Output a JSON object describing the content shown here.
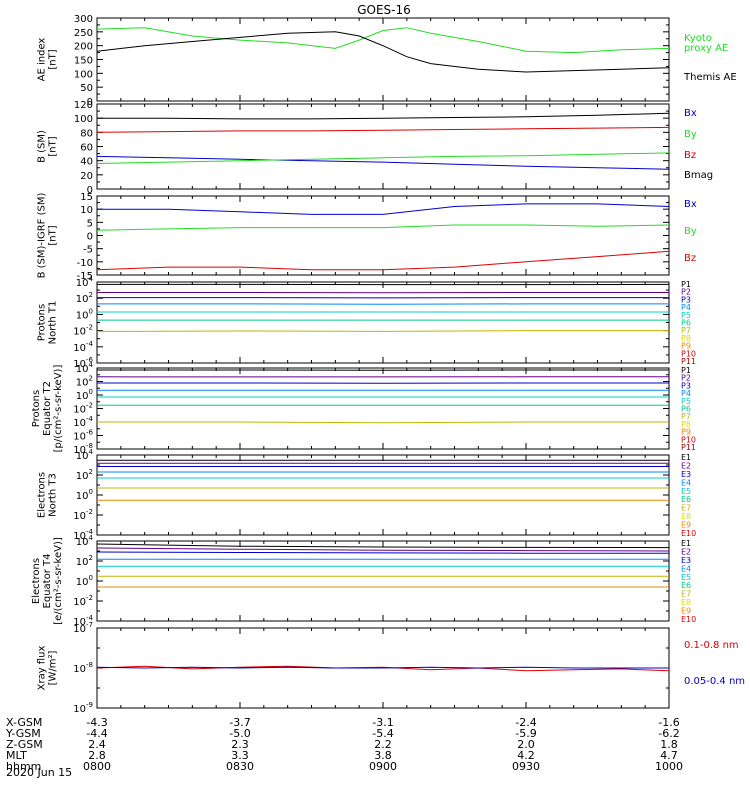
{
  "title": "GOES-16",
  "date_label": "2020 Jun 15",
  "colors": {
    "black": "#000000",
    "red": "#dd0000",
    "green": "#22dd22",
    "blue": "#0000cc",
    "P1": "#000000",
    "P2": "#660088",
    "P3": "#0000cc",
    "P4": "#0088ff",
    "P5": "#00cccc",
    "P6": "#00cc88",
    "P7": "#bbbb00",
    "P8": "#dddd00",
    "P9": "#ee8800",
    "P10": "#dd0000",
    "P11": "#aa0000"
  },
  "x_axis": {
    "ticks": [
      "0800",
      "0830",
      "0900",
      "0930",
      "1000"
    ],
    "rows": [
      {
        "label": "X-GSM",
        "values": [
          "-4.3",
          "-3.7",
          "-3.1",
          "-2.4",
          "-1.6"
        ]
      },
      {
        "label": "Y-GSM",
        "values": [
          "-4.4",
          "-5.0",
          "-5.4",
          "-5.9",
          "-6.2"
        ]
      },
      {
        "label": "Z-GSM",
        "values": [
          "2.4",
          "2.3",
          "2.2",
          "2.0",
          "1.8"
        ]
      },
      {
        "label": "MLT",
        "values": [
          "2.8",
          "3.3",
          "3.8",
          "4.2",
          "4.7"
        ]
      },
      {
        "label": "hhmm",
        "values": [
          "0800",
          "0830",
          "0900",
          "0930",
          "1000"
        ]
      }
    ]
  },
  "chart_data": [
    {
      "type": "line",
      "ylabel": [
        "AE index",
        "[nT]"
      ],
      "ylim": [
        0,
        300
      ],
      "y_ticks": [
        0,
        50,
        100,
        150,
        200,
        250,
        300
      ],
      "x": [
        "0800",
        "0810",
        "0820",
        "0830",
        "0840",
        "0850",
        "0855",
        "0900",
        "0905",
        "0910",
        "0920",
        "0930",
        "0940",
        "0950",
        "1000"
      ],
      "series": [
        {
          "name": "Kyoto proxy AE",
          "color": "green",
          "values": [
            260,
            265,
            235,
            220,
            210,
            190,
            220,
            255,
            265,
            245,
            215,
            180,
            175,
            185,
            190
          ]
        },
        {
          "name": "Themis AE",
          "color": "black",
          "values": [
            180,
            200,
            215,
            230,
            245,
            250,
            235,
            200,
            160,
            135,
            115,
            105,
            110,
            115,
            120
          ]
        }
      ],
      "legend": [
        {
          "text": "Kyoto",
          "color": "green"
        },
        {
          "text": "proxy AE",
          "color": "green"
        },
        {
          "text": "Themis AE",
          "color": "black"
        }
      ]
    },
    {
      "type": "line",
      "ylabel": [
        "B (SM)",
        "[nT]"
      ],
      "ylim": [
        0,
        120
      ],
      "y_ticks": [
        0,
        20,
        40,
        60,
        80,
        100,
        120
      ],
      "x": [
        "0800",
        "0815",
        "0830",
        "0845",
        "0900",
        "0915",
        "0930",
        "0945",
        "1000"
      ],
      "series": [
        {
          "name": "Bx",
          "color": "blue",
          "values": [
            46,
            44,
            42,
            40,
            38,
            35,
            32,
            30,
            28
          ]
        },
        {
          "name": "By",
          "color": "green",
          "values": [
            36,
            38,
            40,
            42,
            44,
            46,
            47,
            49,
            51
          ]
        },
        {
          "name": "Bz",
          "color": "red",
          "values": [
            80,
            81,
            82,
            82,
            83,
            84,
            85,
            86,
            87
          ]
        },
        {
          "name": "Bmag",
          "color": "black",
          "values": [
            100,
            100,
            99,
            99,
            100,
            101,
            102,
            104,
            107
          ]
        }
      ],
      "legend": [
        {
          "text": "Bx",
          "color": "blue"
        },
        {
          "text": "By",
          "color": "green"
        },
        {
          "text": "Bz",
          "color": "red"
        },
        {
          "text": "Bmag",
          "color": "black"
        }
      ]
    },
    {
      "type": "line",
      "ylabel": [
        "B (SM)-IGRF (SM)",
        "[nT]"
      ],
      "ylim": [
        -15,
        15
      ],
      "y_ticks": [
        -15,
        -10,
        -5,
        0,
        5,
        10,
        15
      ],
      "x": [
        "0800",
        "0815",
        "0830",
        "0845",
        "0900",
        "0915",
        "0930",
        "0945",
        "1000"
      ],
      "series": [
        {
          "name": "Bx",
          "color": "blue",
          "values": [
            10,
            10,
            9,
            8,
            8,
            11,
            12,
            12,
            11
          ]
        },
        {
          "name": "By",
          "color": "green",
          "values": [
            2,
            2.5,
            3,
            3,
            3,
            4,
            4,
            3.5,
            4
          ]
        },
        {
          "name": "Bz",
          "color": "red",
          "values": [
            -13,
            -12,
            -12,
            -13,
            -13,
            -12,
            -10,
            -8,
            -6
          ]
        }
      ],
      "legend": [
        {
          "text": "Bx",
          "color": "blue"
        },
        {
          "text": "By",
          "color": "green"
        },
        {
          "text": "Bz",
          "color": "red"
        }
      ]
    },
    {
      "type": "line",
      "log": true,
      "ylabel": [
        "Protons",
        "North T1"
      ],
      "ylim": [
        1e-06,
        10000.0
      ],
      "y_ticks": [
        1e-06,
        0.0001,
        0.01,
        1.0,
        100.0,
        10000.0
      ],
      "x": [
        "0800",
        "0830",
        "0900",
        "0930",
        "1000"
      ],
      "series": [
        {
          "name": "P1",
          "color": "P1",
          "values": [
            5000,
            5000,
            4800,
            4800,
            5000
          ]
        },
        {
          "name": "P2",
          "color": "P2",
          "values": [
            500,
            500,
            480,
            500,
            500
          ]
        },
        {
          "name": "P3",
          "color": "P3",
          "values": [
            120,
            120,
            110,
            120,
            120
          ]
        },
        {
          "name": "P4",
          "color": "P4",
          "values": [
            20,
            20,
            18,
            20,
            20
          ]
        },
        {
          "name": "P5",
          "color": "P5",
          "values": [
            2,
            2,
            2,
            2,
            2
          ]
        },
        {
          "name": "P6",
          "color": "P6",
          "values": [
            0.2,
            0.2,
            0.2,
            0.2,
            0.2
          ]
        },
        {
          "name": "P7",
          "color": "P7",
          "values": [
            0.008,
            0.009,
            0.008,
            0.01,
            0.01
          ]
        },
        {
          "name": "P8",
          "color": "P8",
          "values": [
            0.0001,
            null,
            0.0001,
            null,
            null
          ]
        }
      ],
      "legend_labels": [
        "P1",
        "P2",
        "P3",
        "P4",
        "P5",
        "P6",
        "P7",
        "P8",
        "P9",
        "P10",
        "P11"
      ]
    },
    {
      "type": "line",
      "log": true,
      "ylabel": [
        "Protons",
        "Equator T2",
        "[p/(cm²-s-sr-keV)]"
      ],
      "ylim": [
        1e-08,
        10000.0
      ],
      "y_ticks": [
        1e-08,
        1e-06,
        0.0001,
        0.01,
        1.0,
        100.0,
        10000.0
      ],
      "x": [
        "0800",
        "0830",
        "0900",
        "0930",
        "1000"
      ],
      "series": [
        {
          "name": "P1",
          "color": "P1",
          "values": [
            5000,
            5000,
            4800,
            5000,
            5000
          ]
        },
        {
          "name": "P2",
          "color": "P2",
          "values": [
            500,
            480,
            480,
            500,
            500
          ]
        },
        {
          "name": "P3",
          "color": "P3",
          "values": [
            60,
            60,
            55,
            60,
            60
          ]
        },
        {
          "name": "P4",
          "color": "P4",
          "values": [
            5,
            5,
            5,
            5,
            5
          ]
        },
        {
          "name": "P5",
          "color": "P5",
          "values": [
            0.5,
            0.5,
            0.5,
            0.5,
            0.5
          ]
        },
        {
          "name": "P6",
          "color": "P6",
          "values": [
            0.03,
            0.03,
            0.03,
            0.03,
            0.03
          ]
        },
        {
          "name": "P7",
          "color": "P7",
          "values": [
            0.0001,
            0.0001,
            8e-05,
            0.0001,
            0.0001
          ]
        }
      ],
      "legend_labels": [
        "P1",
        "P2",
        "P3",
        "P4",
        "P5",
        "P6",
        "P7",
        "P8",
        "P9",
        "P10",
        "P11"
      ]
    },
    {
      "type": "line",
      "log": true,
      "ylabel": [
        "Electrons",
        "North T3"
      ],
      "ylim": [
        0.0001,
        10000.0
      ],
      "y_ticks": [
        0.0001,
        0.01,
        1.0,
        100.0,
        10000.0
      ],
      "x": [
        "0800",
        "0830",
        "0900",
        "0930",
        "1000"
      ],
      "series": [
        {
          "name": "E1",
          "color": "P1",
          "values": [
            3000,
            3000,
            3000,
            3000,
            3000
          ]
        },
        {
          "name": "E2",
          "color": "P2",
          "values": [
            1500,
            1500,
            1500,
            1500,
            1500
          ]
        },
        {
          "name": "E3",
          "color": "P3",
          "values": [
            700,
            700,
            700,
            700,
            700
          ]
        },
        {
          "name": "E4",
          "color": "P4",
          "values": [
            200,
            200,
            200,
            200,
            200
          ]
        },
        {
          "name": "E5",
          "color": "P5",
          "values": [
            50,
            50,
            50,
            50,
            50
          ]
        },
        {
          "name": "E6",
          "color": "P7",
          "values": [
            5,
            5,
            5,
            5,
            5
          ]
        },
        {
          "name": "E7",
          "color": "P9",
          "values": [
            0.3,
            0.3,
            0.3,
            0.3,
            0.3
          ]
        },
        {
          "name": "E8",
          "color": "P10",
          "values": [
            null,
            0.005,
            null,
            null,
            0.003
          ]
        }
      ],
      "legend_labels": [
        "E1",
        "E2",
        "E3",
        "E4",
        "E5",
        "E6",
        "E7",
        "E8",
        "E9",
        "E10"
      ]
    },
    {
      "type": "line",
      "log": true,
      "ylabel": [
        "Electrons",
        "Equator T4",
        "[e/(cm²-s-sr-keV)]"
      ],
      "ylim": [
        0.0001,
        10000.0
      ],
      "y_ticks": [
        0.0001,
        0.01,
        1.0,
        100.0,
        10000.0
      ],
      "x": [
        "0800",
        "0830",
        "0900",
        "0930",
        "1000"
      ],
      "series": [
        {
          "name": "E1",
          "color": "P1",
          "values": [
            5000,
            3000,
            2500,
            2300,
            2200
          ]
        },
        {
          "name": "E2",
          "color": "P2",
          "values": [
            2000,
            1500,
            1200,
            1100,
            1000
          ]
        },
        {
          "name": "E3",
          "color": "P3",
          "values": [
            800,
            700,
            650,
            600,
            600
          ]
        },
        {
          "name": "E4",
          "color": "P4",
          "values": [
            150,
            150,
            150,
            150,
            150
          ]
        },
        {
          "name": "E5",
          "color": "P5",
          "values": [
            30,
            30,
            30,
            30,
            30
          ]
        },
        {
          "name": "E6",
          "color": "P7",
          "values": [
            3,
            3,
            3,
            3,
            3
          ]
        },
        {
          "name": "E7",
          "color": "P9",
          "values": [
            0.25,
            0.25,
            0.25,
            0.25,
            0.25
          ]
        }
      ],
      "legend_labels": [
        "E1",
        "E2",
        "E3",
        "E4",
        "E5",
        "E6",
        "E7",
        "E8",
        "E9",
        "E10"
      ]
    },
    {
      "type": "line",
      "log": true,
      "ylabel": [
        "Xray flux",
        "[W/m²]"
      ],
      "ylim": [
        1e-09,
        1e-07
      ],
      "y_ticks": [
        1e-09,
        1e-08,
        1e-07
      ],
      "x": [
        "0800",
        "0810",
        "0820",
        "0830",
        "0840",
        "0850",
        "0900",
        "0910",
        "0920",
        "0930",
        "0940",
        "0950",
        "1000"
      ],
      "series": [
        {
          "name": "0.1-0.8 nm",
          "color": "red",
          "values": [
            1e-08,
            1.1e-08,
            9.5e-09,
            1.05e-08,
            1.1e-08,
            1e-08,
            1.05e-08,
            9e-09,
            1e-08,
            8.5e-09,
            9e-09,
            9.5e-09,
            8.5e-09
          ]
        },
        {
          "name": "0.05-0.4 nm",
          "color": "blue",
          "values": [
            1.05e-08,
            1e-08,
            1.05e-08,
            1e-08,
            1.05e-08,
            1e-08,
            1e-08,
            1.05e-08,
            1e-08,
            1.05e-08,
            1e-08,
            1e-08,
            1e-08
          ]
        }
      ],
      "legend": [
        {
          "text": "0.1-0.8 nm",
          "color": "red"
        },
        {
          "text": "0.05-0.4 nm",
          "color": "blue"
        }
      ]
    }
  ]
}
